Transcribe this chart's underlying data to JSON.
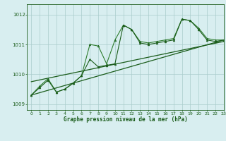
{
  "title": "Graphe pression niveau de la mer (hPa)",
  "bg_color": "#d8eef0",
  "grid_color": "#aacccc",
  "line_color_dark": "#1a5c1a",
  "line_color_med": "#2e7d2e",
  "xlim": [
    -0.5,
    23
  ],
  "ylim": [
    1008.8,
    1012.35
  ],
  "yticks": [
    1009,
    1010,
    1011,
    1012
  ],
  "ytick_labels": [
    "1009",
    "1010",
    "1011",
    "1012"
  ],
  "xticks": [
    0,
    1,
    2,
    3,
    4,
    5,
    6,
    7,
    8,
    9,
    10,
    11,
    12,
    13,
    14,
    15,
    16,
    17,
    18,
    19,
    20,
    21,
    22,
    23
  ],
  "series1_x": [
    0,
    1,
    2,
    3,
    4,
    5,
    6,
    7,
    8,
    9,
    10,
    11,
    12,
    13,
    14,
    15,
    16,
    17,
    18,
    19,
    20,
    21,
    22,
    23
  ],
  "series1_y": [
    1009.3,
    1009.6,
    1009.85,
    1009.4,
    1009.5,
    1009.7,
    1009.95,
    1011.0,
    1010.95,
    1010.35,
    1011.15,
    1011.65,
    1011.5,
    1011.1,
    1011.05,
    1011.1,
    1011.15,
    1011.2,
    1011.85,
    1011.8,
    1011.55,
    1011.2,
    1011.15,
    1011.15
  ],
  "series2_x": [
    0,
    1,
    2,
    3,
    4,
    5,
    6,
    7,
    8,
    9,
    10,
    11,
    12,
    13,
    14,
    15,
    16,
    17,
    18,
    19,
    20,
    21,
    22,
    23
  ],
  "series2_y": [
    1009.3,
    1009.55,
    1009.8,
    1009.4,
    1009.5,
    1009.7,
    1009.95,
    1010.5,
    1010.25,
    1010.3,
    1010.35,
    1011.65,
    1011.5,
    1011.05,
    1011.0,
    1011.05,
    1011.1,
    1011.15,
    1011.85,
    1011.8,
    1011.5,
    1011.15,
    1011.1,
    1011.15
  ],
  "trend1_x": [
    0,
    23
  ],
  "trend1_y": [
    1009.3,
    1011.15
  ],
  "trend2_x": [
    0,
    23
  ],
  "trend2_y": [
    1009.75,
    1011.1
  ],
  "figsize": [
    3.2,
    2.0
  ],
  "dpi": 100
}
